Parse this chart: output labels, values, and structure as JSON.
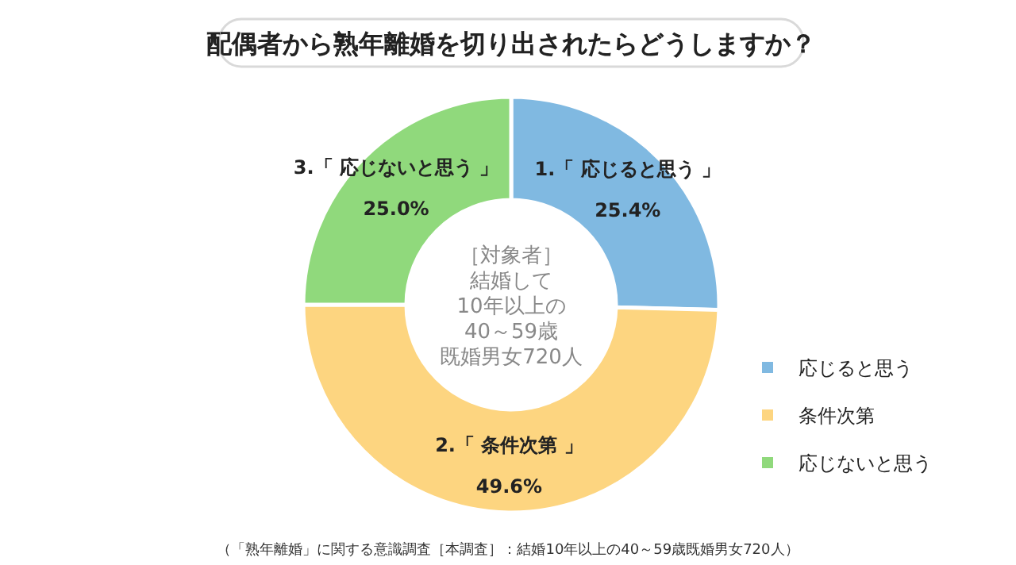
{
  "chart_data": {
    "type": "donut",
    "title": "配偶者から熟年離婚を切り出されたらどうしますか？",
    "categories": [
      "応じると思う",
      "条件次第",
      "応じないと思う"
    ],
    "values": [
      25.4,
      49.6,
      25.0
    ],
    "value_labels": [
      "25.4%",
      "49.6%",
      "25.0%"
    ],
    "colors": [
      "#80b9e1",
      "#fdd580",
      "#90d97c"
    ],
    "legend": "right",
    "annotations": [
      "1.「 応じると思う 」",
      "2.「 条件次第 」",
      "3.「 応じないと思う 」",
      "［対象者］",
      "結婚して",
      "10年以上の",
      "40～59歳",
      "既婚男女720人",
      "（「熟年離婚」に関する意識調査［本調査］：結婚10年以上の40～59歳既婚男女720人）"
    ]
  }
}
